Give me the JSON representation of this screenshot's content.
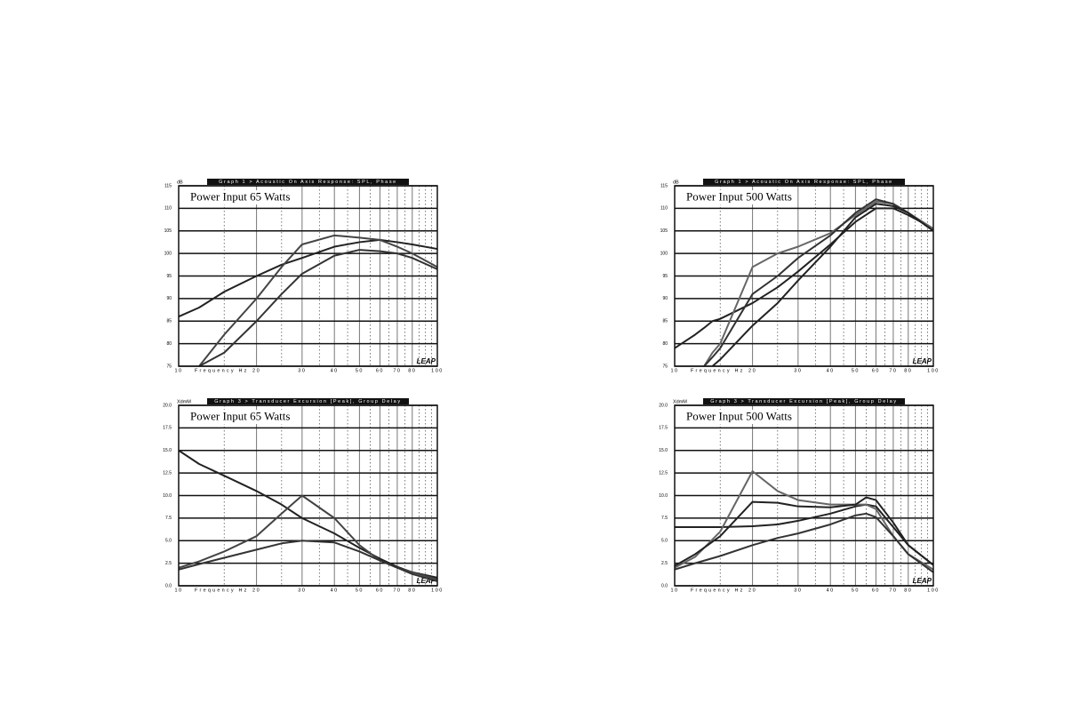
{
  "chart_data": [
    {
      "type": "line",
      "header": "Graph 1 > Acoustic On Axis Response: SPL, Phase",
      "ylabel": "dB",
      "annotation": "Power Input 65 Watts",
      "xlabel": "Frequency Hz",
      "logo": "LEAP",
      "xscale": "log",
      "xlim": [
        10,
        100
      ],
      "xticks": [
        10,
        20,
        30,
        40,
        50,
        60,
        70,
        80,
        100
      ],
      "xminorticks": [
        15,
        25,
        35,
        45,
        55,
        65,
        75,
        85,
        90,
        95
      ],
      "ylim": [
        75,
        115
      ],
      "yticks": [
        75,
        80,
        85,
        90,
        95,
        100,
        105,
        110,
        115
      ],
      "grid": true,
      "x": [
        10,
        12,
        15,
        20,
        25,
        30,
        40,
        50,
        60,
        70,
        80,
        100
      ],
      "series": [
        {
          "color": "#222",
          "values": [
            86,
            88,
            91.5,
            95,
            97.5,
            99,
            101.5,
            102.5,
            103,
            102.5,
            102,
            101
          ]
        },
        {
          "color": "#444",
          "values": [
            null,
            75,
            82,
            90,
            97,
            102,
            104,
            103.5,
            103,
            101.5,
            100,
            97
          ]
        },
        {
          "color": "#333",
          "values": [
            null,
            75,
            78,
            85,
            91,
            95.5,
            99.5,
            100.8,
            100.5,
            100,
            99,
            96.5
          ]
        }
      ]
    },
    {
      "type": "line",
      "header": "Graph 1 > Acoustic On Axis Response: SPL, Phase",
      "ylabel": "dB",
      "annotation": "Power Input 500 Watts",
      "xlabel": "Frequency Hz",
      "logo": "LEAP",
      "xscale": "log",
      "xlim": [
        10,
        100
      ],
      "xticks": [
        10,
        20,
        30,
        40,
        50,
        60,
        70,
        80,
        100
      ],
      "xminorticks": [
        15,
        25,
        35,
        45,
        55,
        65,
        75,
        85,
        90,
        95
      ],
      "ylim": [
        75,
        115
      ],
      "yticks": [
        75,
        80,
        85,
        90,
        95,
        100,
        105,
        110,
        115
      ],
      "grid": true,
      "x": [
        10,
        12,
        13,
        14,
        15,
        20,
        25,
        30,
        40,
        50,
        60,
        70,
        80,
        100
      ],
      "series": [
        {
          "color": "#222",
          "values": [
            79,
            82,
            83.5,
            85,
            85.5,
            89,
            92.5,
            96,
            102,
            107,
            110,
            110,
            108.5,
            105.5
          ]
        },
        {
          "color": "#666",
          "values": [
            null,
            null,
            75,
            78,
            80,
            97,
            100,
            101.5,
            104.5,
            108.5,
            111.5,
            111,
            109,
            105.5
          ]
        },
        {
          "color": "#333",
          "values": [
            null,
            null,
            75,
            77,
            79,
            91,
            95,
            99,
            104,
            109,
            112,
            111,
            109,
            105
          ]
        },
        {
          "color": "#222",
          "values": [
            null,
            null,
            null,
            75,
            76.5,
            84,
            89,
            94,
            101.5,
            108,
            111,
            110.5,
            109,
            105
          ]
        }
      ]
    },
    {
      "type": "line",
      "header": "Graph 3 > Transducer Excursion [Peak], Group Delay",
      "ylabel": "XdmM",
      "annotation": "Power Input 65 Watts",
      "xlabel": "Frequency Hz",
      "logo": "LEAP",
      "xscale": "log",
      "xlim": [
        10,
        100
      ],
      "xticks": [
        10,
        20,
        30,
        40,
        50,
        60,
        70,
        80,
        100
      ],
      "xminorticks": [
        15,
        25,
        35,
        45,
        55,
        65,
        75,
        85,
        90,
        95
      ],
      "ylim": [
        0,
        20
      ],
      "yticks": [
        {
          "value": 0,
          "label": "0.0"
        },
        2.5,
        {
          "value": 5,
          "label": "5.0"
        },
        7.5,
        {
          "value": 10,
          "label": "10.0"
        },
        12.5,
        {
          "value": 15,
          "label": "15.0"
        },
        17.5,
        {
          "value": 20,
          "label": "20.0"
        }
      ],
      "grid": true,
      "x": [
        10,
        12,
        15,
        20,
        25,
        30,
        40,
        50,
        60,
        70,
        80,
        100
      ],
      "series": [
        {
          "color": "#222",
          "values": [
            15,
            13.5,
            12.2,
            10.5,
            9,
            7.5,
            5.8,
            4.2,
            3,
            2.1,
            1.5,
            0.9
          ]
        },
        {
          "color": "#444",
          "values": [
            2,
            2.7,
            3.8,
            5.5,
            8,
            10,
            7.5,
            4.5,
            2.8,
            2,
            1.5,
            0.7
          ]
        },
        {
          "color": "#333",
          "values": [
            1.8,
            2.4,
            3.1,
            4,
            4.7,
            5,
            4.8,
            3.8,
            2.8,
            2,
            1.3,
            0.5
          ]
        }
      ]
    },
    {
      "type": "line",
      "header": "Graph 3 > Transducer Excursion [Peak], Group Delay",
      "ylabel": "XdmM",
      "annotation": "Power Input 500 Watts",
      "xlabel": "Frequency Hz",
      "logo": "LEAP",
      "xscale": "log",
      "xlim": [
        10,
        100
      ],
      "xticks": [
        10,
        20,
        30,
        40,
        50,
        60,
        70,
        80,
        100
      ],
      "xminorticks": [
        15,
        25,
        35,
        45,
        55,
        65,
        75,
        85,
        90,
        95
      ],
      "ylim": [
        0,
        20
      ],
      "yticks": [
        {
          "value": 0,
          "label": "0.0"
        },
        2.5,
        {
          "value": 5,
          "label": "5.0"
        },
        7.5,
        {
          "value": 10,
          "label": "10.0"
        },
        12.5,
        {
          "value": 15,
          "label": "15.0"
        },
        17.5,
        {
          "value": 20,
          "label": "20.0"
        }
      ],
      "grid": true,
      "x": [
        10,
        12,
        15,
        20,
        25,
        30,
        40,
        50,
        55,
        60,
        70,
        80,
        100
      ],
      "series": [
        {
          "color": "#222",
          "values": [
            6.5,
            6.5,
            6.5,
            6.6,
            6.8,
            7.2,
            8,
            8.8,
            9,
            8.8,
            6.5,
            4.5,
            2.3
          ]
        },
        {
          "color": "#666",
          "values": [
            2,
            3.2,
            6,
            12.7,
            10.5,
            9.5,
            9,
            9,
            9,
            8.5,
            5.5,
            3.5,
            1.8
          ]
        },
        {
          "color": "#222",
          "values": [
            2.2,
            3.5,
            5.5,
            9.3,
            9.2,
            8.8,
            8.7,
            9,
            9.8,
            9.5,
            7,
            4.5,
            2.3
          ]
        },
        {
          "color": "#333",
          "values": [
            1.8,
            2.5,
            3.3,
            4.5,
            5.3,
            5.8,
            6.8,
            7.8,
            8,
            7.6,
            5.5,
            3.5,
            1.5
          ]
        }
      ]
    }
  ]
}
